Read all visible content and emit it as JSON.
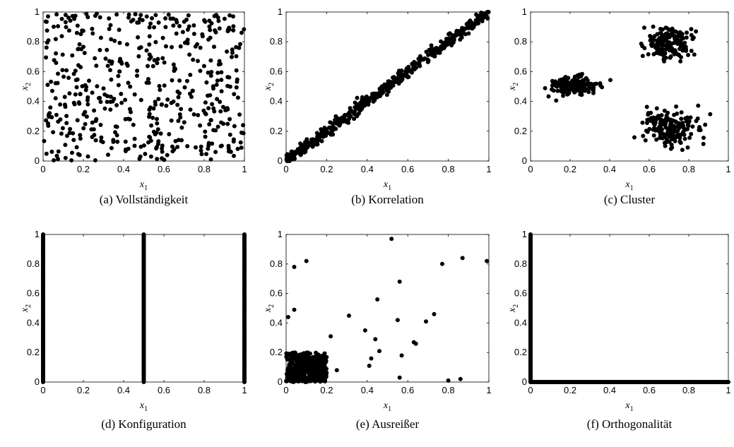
{
  "chart_data": [
    {
      "type": "scatter",
      "id": "a",
      "caption": "(a) Vollständigkeit",
      "xlabel": "x1",
      "ylabel": "x2",
      "xlim": [
        0,
        1
      ],
      "ylim": [
        0,
        1
      ],
      "xticks": [
        "0",
        "0.2",
        "0.4",
        "0.6",
        "0.8",
        "1"
      ],
      "yticks": [
        "0",
        "0.2",
        "0.4",
        "0.6",
        "0.8",
        "1"
      ],
      "color": "#000000",
      "series": [
        {
          "distribution": "uniform",
          "xrange": [
            0,
            1
          ],
          "yrange": [
            0,
            1
          ],
          "count": 500
        }
      ]
    },
    {
      "type": "scatter",
      "id": "b",
      "caption": "(b) Korrelation",
      "xlabel": "x1",
      "ylabel": "x2",
      "xlim": [
        0,
        1
      ],
      "ylim": [
        0,
        1
      ],
      "xticks": [
        "0",
        "0.2",
        "0.4",
        "0.6",
        "0.8",
        "1"
      ],
      "yticks": [
        "0",
        "0.2",
        "0.4",
        "0.6",
        "0.8",
        "1"
      ],
      "color": "#000000",
      "series": [
        {
          "distribution": "linear",
          "xrange": [
            0,
            1
          ],
          "slope": 1,
          "intercept": 0,
          "noise": 0.02,
          "count": 500
        }
      ]
    },
    {
      "type": "scatter",
      "id": "c",
      "caption": "(c) Cluster",
      "xlabel": "x1",
      "ylabel": "x2",
      "xlim": [
        0,
        1
      ],
      "ylim": [
        0,
        1
      ],
      "xticks": [
        "0",
        "0.2",
        "0.4",
        "0.6",
        "0.8",
        "1"
      ],
      "yticks": [
        "0",
        "0.2",
        "0.4",
        "0.6",
        "0.8",
        "1"
      ],
      "color": "#000000",
      "series": [
        {
          "distribution": "gaussian",
          "center": [
            0.22,
            0.51
          ],
          "spread": [
            0.06,
            0.03
          ],
          "count": 160
        },
        {
          "distribution": "gaussian",
          "center": [
            0.7,
            0.79
          ],
          "spread": [
            0.06,
            0.05
          ],
          "count": 170
        },
        {
          "distribution": "gaussian",
          "center": [
            0.7,
            0.23
          ],
          "spread": [
            0.08,
            0.06
          ],
          "count": 170
        }
      ]
    },
    {
      "type": "scatter",
      "id": "d",
      "caption": "(d) Konfiguration",
      "xlabel": "x1",
      "ylabel": "x2",
      "xlim": [
        0,
        1
      ],
      "ylim": [
        0,
        1
      ],
      "xticks": [
        "0",
        "0.2",
        "0.4",
        "0.6",
        "0.8",
        "1"
      ],
      "yticks": [
        "0",
        "0.2",
        "0.4",
        "0.6",
        "0.8",
        "1"
      ],
      "color": "#000000",
      "series": [
        {
          "distribution": "vertical-line",
          "x": 0,
          "yrange": [
            0,
            1
          ],
          "count": 150
        },
        {
          "distribution": "vertical-line",
          "x": 0.5,
          "yrange": [
            0,
            1
          ],
          "count": 150
        },
        {
          "distribution": "vertical-line",
          "x": 1,
          "yrange": [
            0,
            1
          ],
          "count": 150
        }
      ]
    },
    {
      "type": "scatter",
      "id": "e",
      "caption": "(e) Ausreißer",
      "xlabel": "x1",
      "ylabel": "x2",
      "xlim": [
        0,
        1
      ],
      "ylim": [
        0,
        1
      ],
      "xticks": [
        "0",
        "0.2",
        "0.4",
        "0.6",
        "0.8",
        "1"
      ],
      "yticks": [
        "0",
        "0.2",
        "0.4",
        "0.6",
        "0.8",
        "1"
      ],
      "color": "#000000",
      "series": [
        {
          "distribution": "uniform",
          "xrange": [
            0,
            0.2
          ],
          "yrange": [
            0,
            0.2
          ],
          "count": 450
        },
        {
          "distribution": "points",
          "points": [
            [
              0.01,
              0.44
            ],
            [
              0.04,
              0.49
            ],
            [
              0.04,
              0.78
            ],
            [
              0.1,
              0.82
            ],
            [
              0.22,
              0.31
            ],
            [
              0.25,
              0.08
            ],
            [
              0.31,
              0.45
            ],
            [
              0.39,
              0.35
            ],
            [
              0.41,
              0.11
            ],
            [
              0.42,
              0.16
            ],
            [
              0.44,
              0.29
            ],
            [
              0.45,
              0.56
            ],
            [
              0.46,
              0.21
            ],
            [
              0.52,
              0.97
            ],
            [
              0.55,
              0.42
            ],
            [
              0.56,
              0.03
            ],
            [
              0.56,
              0.68
            ],
            [
              0.57,
              0.18
            ],
            [
              0.63,
              0.27
            ],
            [
              0.64,
              0.26
            ],
            [
              0.69,
              0.41
            ],
            [
              0.73,
              0.46
            ],
            [
              0.77,
              0.8
            ],
            [
              0.8,
              0.01
            ],
            [
              0.86,
              0.02
            ],
            [
              0.87,
              0.84
            ],
            [
              0.99,
              0.82
            ]
          ]
        }
      ]
    },
    {
      "type": "scatter",
      "id": "f",
      "caption": "(f) Orthogonalität",
      "xlabel": "x1",
      "ylabel": "x2",
      "xlim": [
        0,
        1
      ],
      "ylim": [
        0,
        1
      ],
      "xticks": [
        "0",
        "0.2",
        "0.4",
        "0.6",
        "0.8",
        "1"
      ],
      "yticks": [
        "0",
        "0.2",
        "0.4",
        "0.6",
        "0.8",
        "1"
      ],
      "color": "#000000",
      "series": [
        {
          "distribution": "vertical-line",
          "x": 0,
          "yrange": [
            0,
            1
          ],
          "count": 200
        },
        {
          "distribution": "horizontal-line",
          "y": 0,
          "xrange": [
            0,
            1
          ],
          "count": 250
        }
      ]
    }
  ]
}
